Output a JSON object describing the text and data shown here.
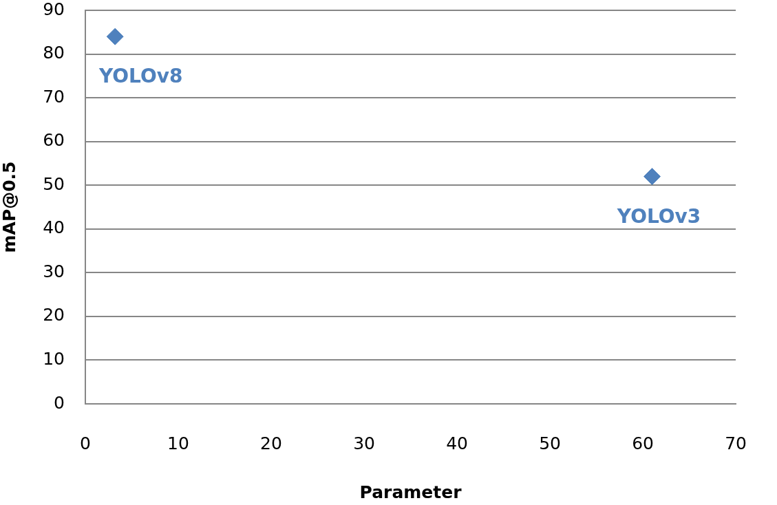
{
  "chart_data": {
    "type": "scatter",
    "xlabel": "Parameter",
    "ylabel": "mAP@0.5",
    "series": [
      {
        "name": "YOLOv8",
        "color": "#4f81bd",
        "x": [
          3.2
        ],
        "values": [
          84
        ]
      },
      {
        "name": "YOLOv3",
        "color": "#4f81bd",
        "x": [
          61
        ],
        "values": [
          52
        ]
      }
    ],
    "xlim": [
      0,
      70
    ],
    "xticks": [
      0,
      10,
      20,
      30,
      40,
      50,
      60,
      70
    ],
    "ylim": [
      0,
      90
    ],
    "yticks": [
      0,
      10,
      20,
      30,
      40,
      50,
      60,
      70,
      80,
      90
    ],
    "grid": "y",
    "legend": false,
    "marker": "diamond"
  }
}
